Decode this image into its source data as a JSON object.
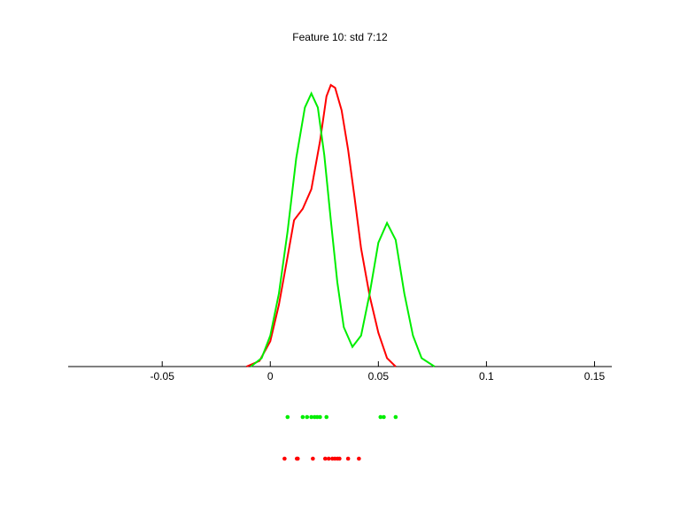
{
  "chart_data": {
    "type": "line",
    "title": "Feature 10: std 7:12",
    "xlim": [
      -0.0935,
      0.158
    ],
    "xticks": [
      -0.05,
      0,
      0.05,
      0.1,
      0.15
    ],
    "ylim": [
      0,
      1.0
    ],
    "series": [
      {
        "color": "#ff0000",
        "x": [
          -0.011,
          -0.005,
          0,
          0.004,
          0.008,
          0.011,
          0.015,
          0.019,
          0.023,
          0.026,
          0.028,
          0.03,
          0.033,
          0.036,
          0.039,
          0.042,
          0.046,
          0.05,
          0.054,
          0.058
        ],
        "values": [
          0,
          0.02,
          0.09,
          0.22,
          0.39,
          0.52,
          0.56,
          0.63,
          0.8,
          0.96,
          1.0,
          0.99,
          0.91,
          0.77,
          0.6,
          0.42,
          0.25,
          0.12,
          0.03,
          0
        ],
        "samples": [
          0.0066,
          0.0123,
          0.0127,
          0.0197,
          0.0254,
          0.027,
          0.0287,
          0.0299,
          0.0311,
          0.032,
          0.036,
          0.041
        ]
      },
      {
        "color": "#00ee00",
        "x": [
          -0.009,
          -0.004,
          0,
          0.004,
          0.008,
          0.012,
          0.016,
          0.019,
          0.022,
          0.025,
          0.028,
          0.031,
          0.034,
          0.038,
          0.042,
          0.046,
          0.05,
          0.054,
          0.058,
          0.062,
          0.066,
          0.07,
          0.076
        ],
        "values": [
          0,
          0.03,
          0.11,
          0.26,
          0.48,
          0.74,
          0.92,
          0.97,
          0.92,
          0.75,
          0.52,
          0.3,
          0.14,
          0.07,
          0.11,
          0.26,
          0.44,
          0.51,
          0.45,
          0.26,
          0.11,
          0.03,
          0
        ],
        "samples": [
          0.008,
          0.015,
          0.017,
          0.019,
          0.0205,
          0.0217,
          0.023,
          0.026,
          0.051,
          0.0525,
          0.058
        ]
      }
    ]
  }
}
